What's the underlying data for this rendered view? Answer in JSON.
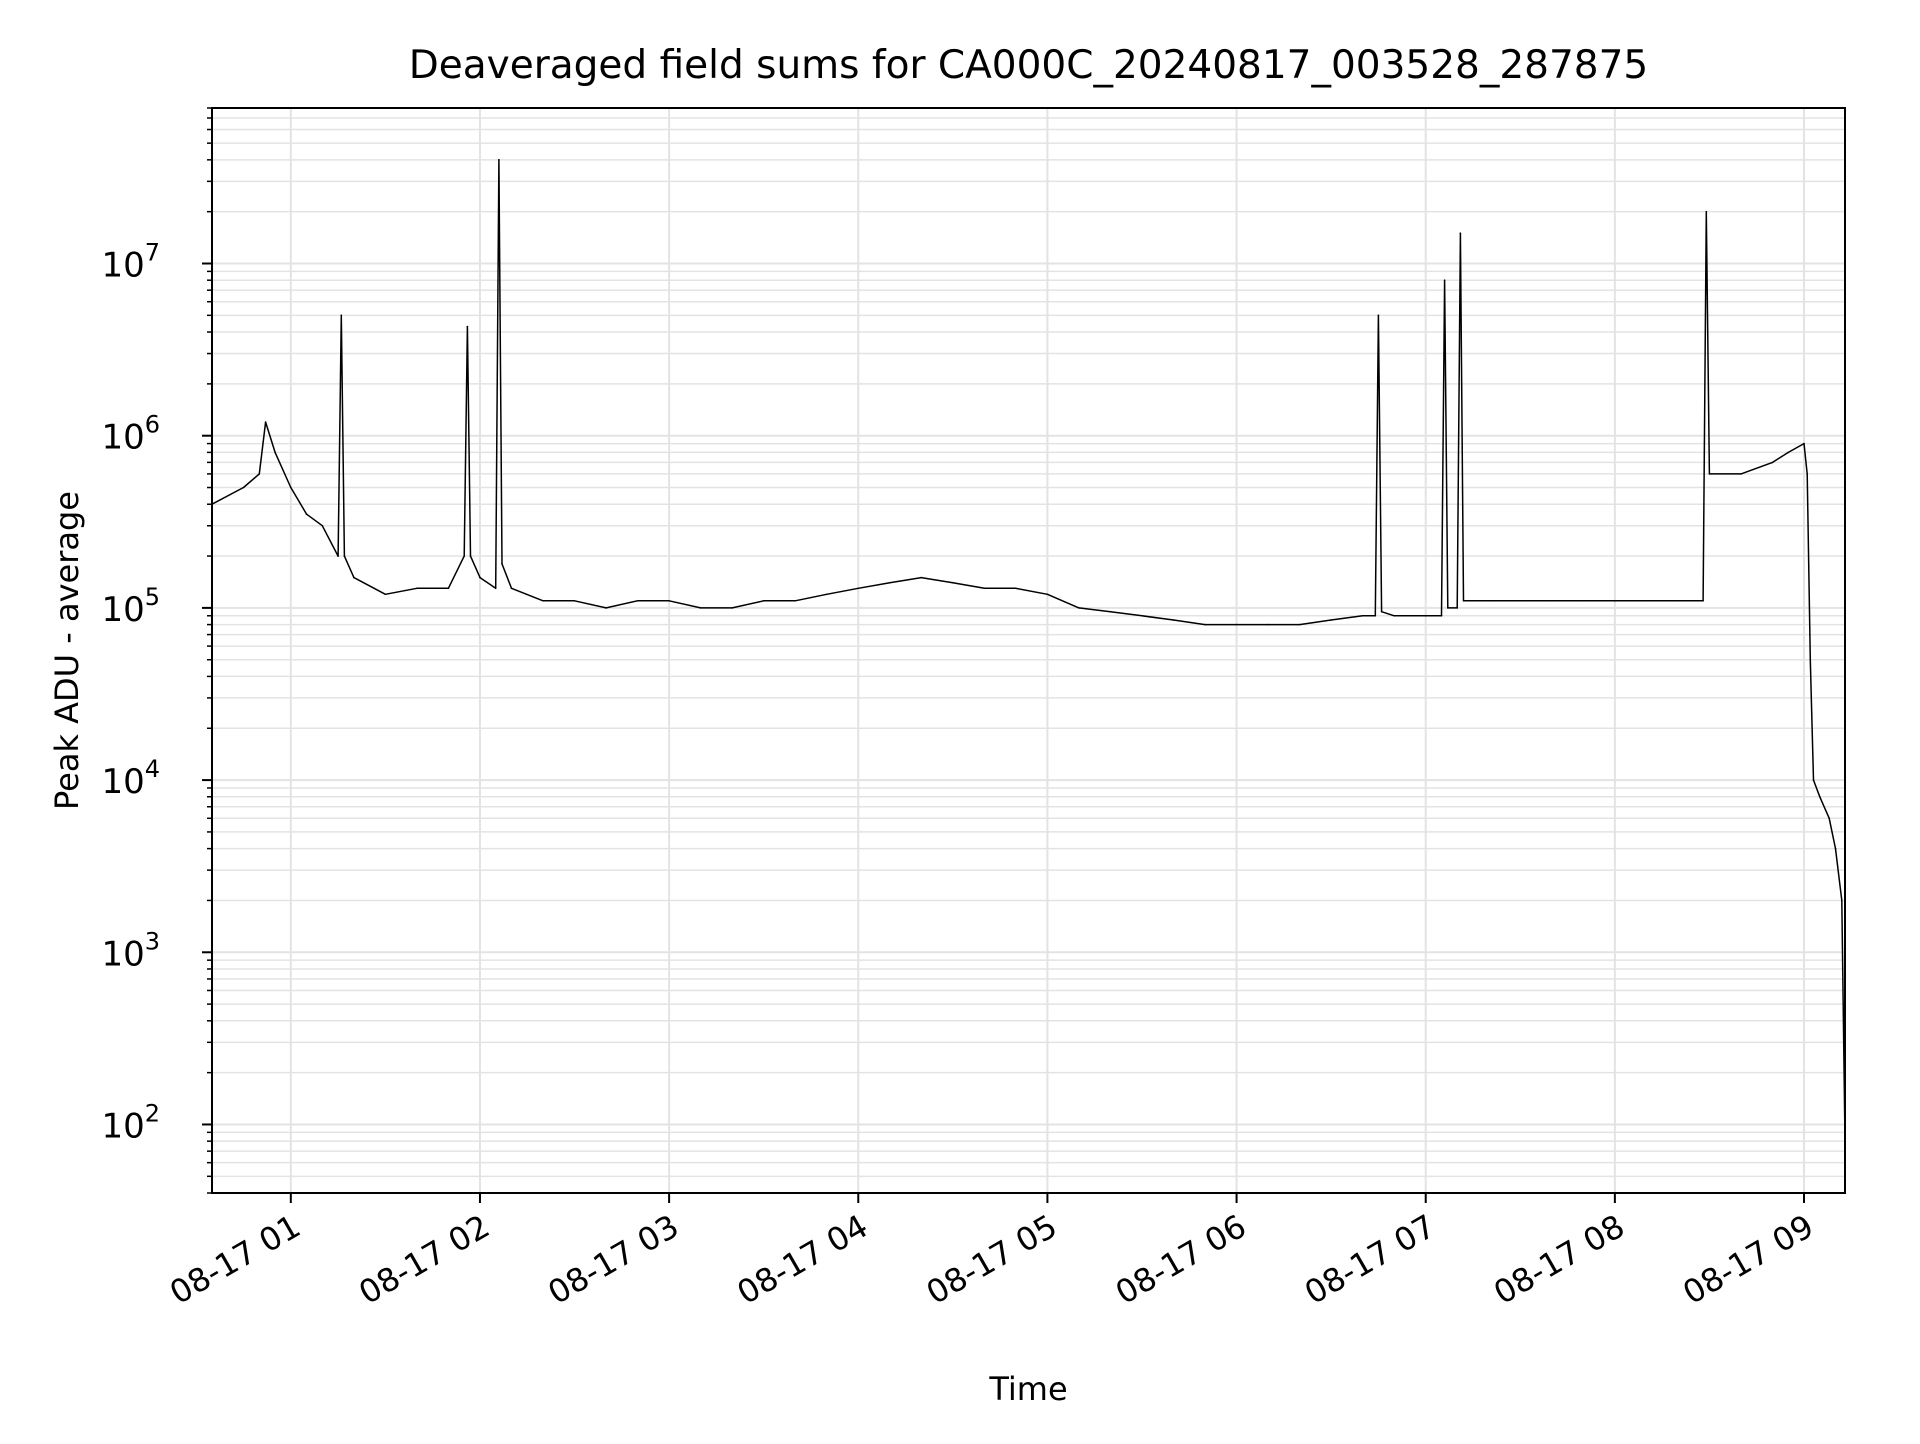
{
  "chart_data": {
    "type": "line",
    "title": "Deaveraged field sums for CA000C_20240817_003528_287875",
    "xlabel": "Time",
    "ylabel": "Peak ADU - average",
    "xlim": [
      "2024-08-17 00:35",
      "2024-08-17 09:13"
    ],
    "ylim": [
      40,
      80000000
    ],
    "yscale": "log",
    "grid": true,
    "legend": "none",
    "line_color": "#000000",
    "grid_color": "#e3e3e3",
    "xticks": [
      {
        "value": "2024-08-17 01:00",
        "label": "08-17 01"
      },
      {
        "value": "2024-08-17 02:00",
        "label": "08-17 02"
      },
      {
        "value": "2024-08-17 03:00",
        "label": "08-17 03"
      },
      {
        "value": "2024-08-17 04:00",
        "label": "08-17 04"
      },
      {
        "value": "2024-08-17 05:00",
        "label": "08-17 05"
      },
      {
        "value": "2024-08-17 06:00",
        "label": "08-17 06"
      },
      {
        "value": "2024-08-17 07:00",
        "label": "08-17 07"
      },
      {
        "value": "2024-08-17 08:00",
        "label": "08-17 08"
      },
      {
        "value": "2024-08-17 09:00",
        "label": "08-17 09"
      }
    ],
    "yticks": [
      {
        "value": 100,
        "base": "10",
        "exp": "2"
      },
      {
        "value": 1000,
        "base": "10",
        "exp": "3"
      },
      {
        "value": 10000,
        "base": "10",
        "exp": "4"
      },
      {
        "value": 100000,
        "base": "10",
        "exp": "5"
      },
      {
        "value": 1000000,
        "base": "10",
        "exp": "6"
      },
      {
        "value": 10000000,
        "base": "10",
        "exp": "7"
      }
    ],
    "series": [
      {
        "x": [
          "2024-08-17 00:35",
          "2024-08-17 00:45",
          "2024-08-17 00:50",
          "2024-08-17 00:52",
          "2024-08-17 00:55",
          "2024-08-17 01:00",
          "2024-08-17 01:05",
          "2024-08-17 01:10",
          "2024-08-17 01:15",
          "2024-08-17 01:16",
          "2024-08-17 01:17",
          "2024-08-17 01:20",
          "2024-08-17 01:30",
          "2024-08-17 01:40",
          "2024-08-17 01:50",
          "2024-08-17 01:55",
          "2024-08-17 01:56",
          "2024-08-17 01:57",
          "2024-08-17 02:00",
          "2024-08-17 02:05",
          "2024-08-17 02:06",
          "2024-08-17 02:07",
          "2024-08-17 02:10",
          "2024-08-17 02:20",
          "2024-08-17 02:30",
          "2024-08-17 02:40",
          "2024-08-17 02:50",
          "2024-08-17 03:00",
          "2024-08-17 03:10",
          "2024-08-17 03:20",
          "2024-08-17 03:30",
          "2024-08-17 03:40",
          "2024-08-17 03:50",
          "2024-08-17 04:00",
          "2024-08-17 04:10",
          "2024-08-17 04:20",
          "2024-08-17 04:30",
          "2024-08-17 04:40",
          "2024-08-17 04:50",
          "2024-08-17 05:00",
          "2024-08-17 05:10",
          "2024-08-17 05:20",
          "2024-08-17 05:30",
          "2024-08-17 05:40",
          "2024-08-17 05:50",
          "2024-08-17 06:00",
          "2024-08-17 06:10",
          "2024-08-17 06:20",
          "2024-08-17 06:30",
          "2024-08-17 06:40",
          "2024-08-17 06:44",
          "2024-08-17 06:45",
          "2024-08-17 06:46",
          "2024-08-17 06:50",
          "2024-08-17 07:00",
          "2024-08-17 07:05",
          "2024-08-17 07:06",
          "2024-08-17 07:07",
          "2024-08-17 07:10",
          "2024-08-17 07:11",
          "2024-08-17 07:12",
          "2024-08-17 07:13",
          "2024-08-17 07:20",
          "2024-08-17 07:30",
          "2024-08-17 07:40",
          "2024-08-17 07:50",
          "2024-08-17 08:00",
          "2024-08-17 08:10",
          "2024-08-17 08:20",
          "2024-08-17 08:28",
          "2024-08-17 08:29",
          "2024-08-17 08:30",
          "2024-08-17 08:40",
          "2024-08-17 08:50",
          "2024-08-17 08:55",
          "2024-08-17 09:00",
          "2024-08-17 09:01",
          "2024-08-17 09:02",
          "2024-08-17 09:03",
          "2024-08-17 09:05",
          "2024-08-17 09:08",
          "2024-08-17 09:10",
          "2024-08-17 09:12",
          "2024-08-17 09:13"
        ],
        "y": [
          400000,
          500000,
          600000,
          1200000,
          800000,
          500000,
          350000,
          300000,
          200000,
          5000000,
          200000,
          150000,
          120000,
          130000,
          130000,
          200000,
          4300000,
          200000,
          150000,
          130000,
          40000000,
          180000,
          130000,
          110000,
          110000,
          100000,
          110000,
          110000,
          100000,
          100000,
          110000,
          110000,
          120000,
          130000,
          140000,
          150000,
          140000,
          130000,
          130000,
          120000,
          100000,
          95000,
          90000,
          85000,
          80000,
          80000,
          80000,
          80000,
          85000,
          90000,
          90000,
          5000000,
          95000,
          90000,
          90000,
          90000,
          8000000,
          100000,
          100000,
          15000000,
          110000,
          110000,
          110000,
          110000,
          110000,
          110000,
          110000,
          110000,
          110000,
          110000,
          20000000,
          600000,
          600000,
          700000,
          800000,
          900000,
          600000,
          50000,
          10000,
          8000,
          6000,
          4000,
          2000,
          80
        ]
      }
    ]
  }
}
